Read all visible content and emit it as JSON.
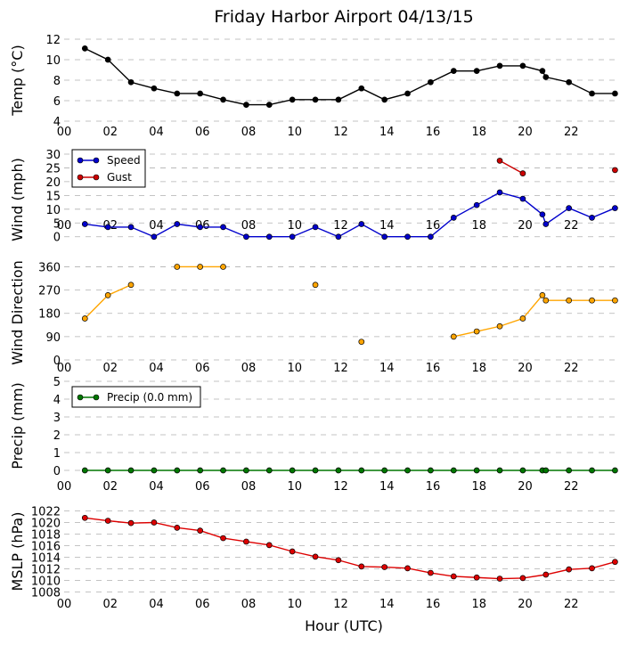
{
  "title": "Friday Harbor Airport 04/13/15",
  "xlabel": "Hour (UTC)",
  "x_ticks": [
    "00",
    "02",
    "04",
    "06",
    "08",
    "10",
    "12",
    "14",
    "16",
    "18",
    "20",
    "22"
  ],
  "chart_data": [
    {
      "type": "line",
      "ylabel": "Temp ($^\\circ$C)",
      "ylim": [
        4,
        12
      ],
      "yticks": [
        4,
        6,
        8,
        10,
        12
      ],
      "grid": true,
      "x_ticks_shown": true,
      "series": [
        {
          "color": "#000000",
          "x": [
            0.9,
            1.9,
            2.9,
            3.9,
            4.9,
            5.9,
            6.9,
            7.9,
            8.9,
            9.9,
            10.9,
            11.9,
            12.9,
            13.9,
            14.9,
            15.9,
            16.9,
            17.9,
            18.9,
            19.9,
            20.75,
            20.9,
            21.9,
            22.9,
            23.9
          ],
          "values": [
            11.1,
            10.0,
            7.8,
            7.2,
            6.7,
            6.7,
            6.1,
            5.6,
            5.6,
            6.1,
            6.1,
            6.1,
            7.2,
            6.1,
            6.7,
            7.8,
            8.9,
            8.9,
            9.4,
            9.4,
            8.9,
            8.3,
            7.8,
            6.7,
            6.7
          ]
        }
      ]
    },
    {
      "type": "line",
      "ylabel": "Wind (mph)",
      "ylim": [
        -3,
        30
      ],
      "yticks": [
        0,
        5,
        10,
        15,
        20,
        25,
        30
      ],
      "grid": true,
      "x_ticks_shown": true,
      "legend": "top-left",
      "series": [
        {
          "name": "Speed",
          "color": "#0000cc",
          "x": [
            0.9,
            1.9,
            2.9,
            3.9,
            4.9,
            5.9,
            6.9,
            7.9,
            8.9,
            9.9,
            10.9,
            11.9,
            12.9,
            13.9,
            14.9,
            15.9,
            16.9,
            17.9,
            18.9,
            19.9,
            20.75,
            20.9,
            21.9,
            22.9,
            23.9
          ],
          "values": [
            4.6,
            3.5,
            3.5,
            0,
            4.6,
            3.5,
            3.5,
            0,
            0,
            0,
            3.5,
            0,
            4.6,
            0,
            0,
            0,
            6.9,
            11.5,
            16.1,
            13.8,
            8.1,
            4.6,
            10.4,
            6.9,
            10.4
          ]
        },
        {
          "name": "Gust",
          "color": "#cc0000",
          "segments": [
            {
              "x": [
                18.9,
                19.9
              ],
              "values": [
                27.6,
                23.0
              ]
            },
            {
              "x": [
                23.9
              ],
              "values": [
                24.2
              ]
            }
          ]
        }
      ]
    },
    {
      "type": "line",
      "ylabel": "Wind Direction",
      "ylim": [
        0,
        365
      ],
      "yticks": [
        0,
        90,
        180,
        270,
        360
      ],
      "grid": true,
      "x_ticks_shown": true,
      "series": [
        {
          "color": "#ffa500",
          "segments": [
            {
              "x": [
                0.9,
                1.9,
                2.9
              ],
              "values": [
                160,
                250,
                290
              ]
            },
            {
              "x": [
                4.9,
                5.9,
                6.9
              ],
              "values": [
                360,
                360,
                360
              ]
            },
            {
              "x": [
                10.9
              ],
              "values": [
                290
              ]
            },
            {
              "x": [
                12.9
              ],
              "values": [
                70
              ]
            },
            {
              "x": [
                16.9,
                17.9,
                18.9,
                19.9,
                20.75,
                20.9,
                21.9,
                22.9,
                23.9
              ],
              "values": [
                90,
                110,
                130,
                160,
                250,
                230,
                230,
                230,
                230
              ]
            }
          ]
        }
      ]
    },
    {
      "type": "line",
      "ylabel": "Precip (mm)",
      "ylim": [
        0,
        5
      ],
      "yticks": [
        0,
        1,
        2,
        3,
        4,
        5
      ],
      "grid": true,
      "x_ticks_shown": true,
      "legend": "top-left",
      "series": [
        {
          "name": "Precip (0.0 mm)",
          "color": "#007700",
          "x": [
            0.9,
            1.9,
            2.9,
            3.9,
            4.9,
            5.9,
            6.9,
            7.9,
            8.9,
            9.9,
            10.9,
            11.9,
            12.9,
            13.9,
            14.9,
            15.9,
            16.9,
            17.9,
            18.9,
            19.9,
            20.75,
            20.9,
            21.9,
            22.9,
            23.9
          ],
          "values": [
            0,
            0,
            0,
            0,
            0,
            0,
            0,
            0,
            0,
            0,
            0,
            0,
            0,
            0,
            0,
            0,
            0,
            0,
            0,
            0,
            0,
            0,
            0,
            0,
            0
          ]
        }
      ]
    },
    {
      "type": "line",
      "ylabel": "MSLP (hPa)",
      "ylim": [
        1007,
        1023
      ],
      "yticks": [
        1008,
        1010,
        1012,
        1014,
        1016,
        1018,
        1020,
        1022
      ],
      "grid": true,
      "x_ticks_shown": true,
      "series": [
        {
          "color": "#dd0000",
          "x": [
            0.9,
            1.9,
            2.9,
            3.9,
            4.9,
            5.9,
            6.9,
            7.9,
            8.9,
            9.9,
            10.9,
            11.9,
            12.9,
            13.9,
            14.9,
            15.9,
            16.9,
            17.9,
            18.9,
            19.9,
            20.9,
            21.9,
            22.9,
            23.9
          ],
          "values": [
            1020.8,
            1020.3,
            1019.9,
            1020.0,
            1019.1,
            1018.6,
            1017.3,
            1016.7,
            1016.1,
            1015.0,
            1014.1,
            1013.5,
            1012.4,
            1012.3,
            1012.1,
            1011.3,
            1010.7,
            1010.5,
            1010.3,
            1010.4,
            1011.0,
            1011.9,
            1012.1,
            1013.2
          ]
        }
      ]
    }
  ]
}
